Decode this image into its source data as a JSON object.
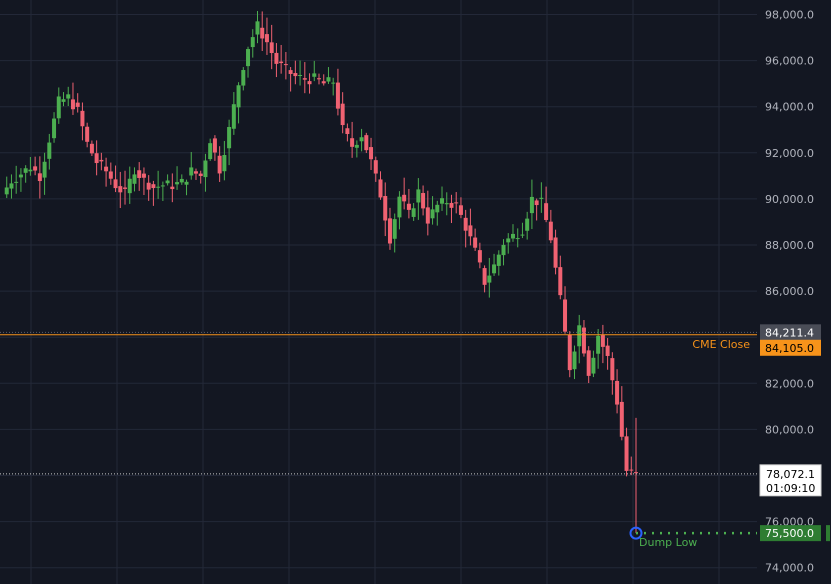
{
  "chart_data": {
    "type": "candlestick",
    "y_ticks": [
      "98,000.0",
      "96,000.0",
      "94,000.0",
      "92,000.0",
      "90,000.0",
      "88,000.0",
      "86,000.0",
      "84,000.0",
      "82,000.0",
      "80,000.0",
      "78,000.0",
      "76,000.0",
      "74,000.0"
    ],
    "y_tick_values": [
      98000,
      96000,
      94000,
      92000,
      90000,
      88000,
      86000,
      84000,
      82000,
      80000,
      78000,
      76000,
      74000
    ],
    "ylim": [
      73900,
      98550
    ],
    "grid": true,
    "colors": {
      "up": "#26a69a",
      "up_body": "#4caf50",
      "down": "#ef5350",
      "down_body": "#f06272",
      "cme": "#f7931a",
      "dump": "#2e7d32",
      "dump_text": "#4caf50",
      "grid": "#232838",
      "circle": "#2962ff"
    },
    "close_series": [
      90200,
      90800,
      91100,
      91400,
      91000,
      92600,
      94200,
      94400,
      93800,
      92400,
      91600,
      91200,
      90600,
      90200,
      91300,
      90800,
      90500,
      90600,
      90600,
      90700,
      91200,
      91000,
      92600,
      91300,
      93000,
      95000,
      96600,
      97500,
      96800,
      95900,
      95600,
      95300,
      95200,
      95200,
      95000,
      95100,
      93000,
      92300,
      92800,
      91600,
      90200,
      88300,
      90100,
      89300,
      90300,
      89100,
      89700,
      89900,
      89700,
      88800,
      87700,
      86400,
      87100,
      88100,
      88400,
      88700,
      90000,
      89800,
      88300,
      85600,
      82700,
      84500,
      82500,
      84100,
      83100,
      81200,
      78200,
      78000
    ],
    "annotations": {
      "cme_close": {
        "label": "CME Close",
        "value": 84105,
        "tag": "84,105.0"
      },
      "prior_level": {
        "value": 84211.4,
        "tag": "84,211.4"
      },
      "last_price": {
        "value": 78072.1,
        "tag": "78,072.1",
        "countdown": "01:09:10"
      },
      "dump_low": {
        "label": "Dump Low",
        "value": 75500,
        "tag": "75,500.0"
      }
    }
  }
}
